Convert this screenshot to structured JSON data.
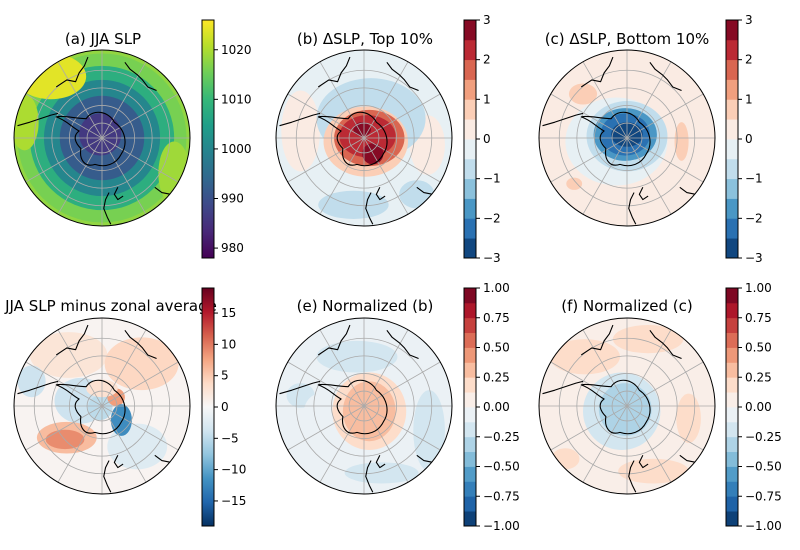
{
  "chart_data": [
    {
      "type": "heatmap",
      "title": "(a) JJA SLP",
      "colormap": "viridis",
      "levels": "continuous",
      "colorbar": {
        "ticks": [
          980,
          990,
          1000,
          1010,
          1020
        ],
        "ticklabels": [
          "980",
          "990",
          "1000",
          "1010",
          "1020"
        ],
        "vmin": 978,
        "vmax": 1026
      },
      "projection": "south-polar-stereographic"
    },
    {
      "type": "heatmap",
      "title": "(b) ΔSLP, Top 10%",
      "colormap": "RdBu_r",
      "levels": [
        -3,
        -2.5,
        -2,
        -1.5,
        -1,
        -0.5,
        0,
        0.5,
        1,
        1.5,
        2,
        2.5,
        3
      ],
      "colorbar": {
        "ticks": [
          -3,
          -2,
          -1,
          0,
          1,
          2,
          3
        ],
        "ticklabels": [
          "−3",
          "−2",
          "−1",
          "0",
          "1",
          "2",
          "3"
        ],
        "vmin": -3,
        "vmax": 3
      },
      "projection": "south-polar-stereographic"
    },
    {
      "type": "heatmap",
      "title": "(c) ΔSLP, Bottom 10%",
      "colormap": "RdBu_r",
      "levels": [
        -3,
        -2.5,
        -2,
        -1.5,
        -1,
        -0.5,
        0,
        0.5,
        1,
        1.5,
        2,
        2.5,
        3
      ],
      "colorbar": {
        "ticks": [
          -3,
          -2,
          -1,
          0,
          1,
          2,
          3
        ],
        "ticklabels": [
          "−3",
          "−2",
          "−1",
          "0",
          "1",
          "2",
          "3"
        ],
        "vmin": -3,
        "vmax": 3
      },
      "projection": "south-polar-stereographic"
    },
    {
      "type": "heatmap",
      "title": "(d) JJA SLP minus zonal average",
      "colormap": "RdBu_r",
      "levels": "continuous",
      "colorbar": {
        "ticks": [
          -15,
          -10,
          -5,
          0,
          5,
          10,
          15
        ],
        "ticklabels": [
          "−15",
          "−10",
          "−5",
          "0",
          "5",
          "10",
          "15"
        ],
        "vmin": -19,
        "vmax": 19
      },
      "projection": "south-polar-stereographic"
    },
    {
      "type": "heatmap",
      "title": "(e) Normalized (b)",
      "colormap": "RdBu_r",
      "levels": [
        -1,
        -0.875,
        -0.75,
        -0.625,
        -0.5,
        -0.375,
        -0.25,
        -0.125,
        0,
        0.125,
        0.25,
        0.375,
        0.5,
        0.625,
        0.75,
        0.875,
        1
      ],
      "colorbar": {
        "ticks": [
          -1,
          -0.75,
          -0.5,
          -0.25,
          0,
          0.25,
          0.5,
          0.75,
          1
        ],
        "ticklabels": [
          "−1.00",
          "−0.75",
          "−0.50",
          "−0.25",
          "0.00",
          "0.25",
          "0.50",
          "0.75",
          "1.00"
        ],
        "vmin": -1,
        "vmax": 1
      },
      "projection": "south-polar-stereographic"
    },
    {
      "type": "heatmap",
      "title": "(f) Normalized (c)",
      "colormap": "RdBu_r",
      "levels": [
        -1,
        -0.875,
        -0.75,
        -0.625,
        -0.5,
        -0.375,
        -0.25,
        -0.125,
        0,
        0.125,
        0.25,
        0.375,
        0.5,
        0.625,
        0.75,
        0.875,
        1
      ],
      "colorbar": {
        "ticks": [
          -1,
          -0.75,
          -0.5,
          -0.25,
          0,
          0.25,
          0.5,
          0.75,
          1
        ],
        "ticklabels": [
          "−1.00",
          "−0.75",
          "−0.50",
          "−0.25",
          "0.00",
          "0.25",
          "0.50",
          "0.75",
          "1.00"
        ],
        "vmin": -1,
        "vmax": 1
      },
      "projection": "south-polar-stereographic"
    }
  ],
  "colors": {
    "viridis": [
      "#440154",
      "#482878",
      "#3e4989",
      "#31688e",
      "#26828e",
      "#1f9e89",
      "#35b779",
      "#6ece58",
      "#b5de2b",
      "#fde725"
    ],
    "rdbu": [
      "#053061",
      "#2166ac",
      "#4393c3",
      "#92c5de",
      "#d1e5f0",
      "#f7f7f7",
      "#fddbc7",
      "#f4a582",
      "#d6604d",
      "#b2182b",
      "#67001f"
    ],
    "coast": "#000000",
    "grid": "#aaaaaa"
  }
}
